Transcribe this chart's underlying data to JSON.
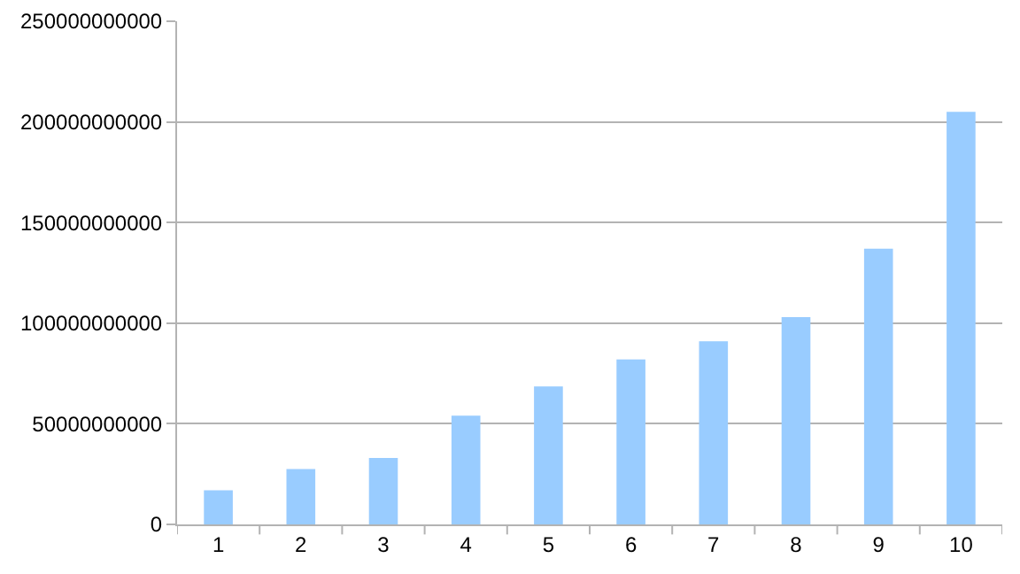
{
  "chart_data": {
    "type": "bar",
    "categories": [
      "1",
      "2",
      "3",
      "4",
      "5",
      "6",
      "7",
      "8",
      "9",
      "10"
    ],
    "values": [
      17000000000,
      27500000000,
      33000000000,
      54000000000,
      68500000000,
      82000000000,
      91000000000,
      103000000000,
      137000000000,
      205000000000
    ],
    "color": "#99ccff",
    "ylim": [
      0,
      250000000000
    ],
    "yticks": [
      0,
      50000000000,
      100000000000,
      150000000000,
      200000000000,
      250000000000
    ],
    "grid": "y",
    "legend": false
  }
}
